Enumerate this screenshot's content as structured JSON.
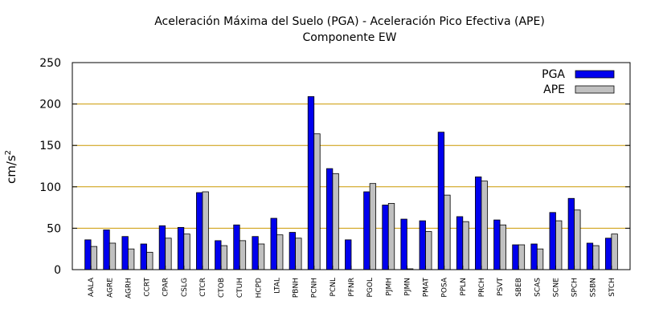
{
  "chart_data": {
    "type": "bar",
    "title": "Aceleración Máxima del Suelo (PGA) -  Aceleración Pico Efectiva (APE)",
    "subtitle": "Componente EW",
    "ylabel": "cm/s",
    "ylabel_sup": "2",
    "ylim": [
      0,
      250
    ],
    "yticks": [
      0,
      50,
      100,
      150,
      200,
      250
    ],
    "grid": "horizontal",
    "legend_position": "top-right",
    "categories": [
      "AALA",
      "AGRE",
      "AGRH",
      "CCRT",
      "CPAR",
      "CSLG",
      "CTCR",
      "CTOB",
      "CTUH",
      "HCPD",
      "LTAL",
      "PBNH",
      "PCNH",
      "PCNL",
      "PFNR",
      "PGOL",
      "PJMH",
      "PJMN",
      "PMAT",
      "POSA",
      "PPLN",
      "PRCH",
      "PSVT",
      "SBEB",
      "SCAS",
      "SCNE",
      "SPCH",
      "SSBN",
      "STCH"
    ],
    "series": [
      {
        "name": "PGA",
        "color": "#0000ee",
        "values": [
          36,
          48,
          40,
          31,
          53,
          51,
          93,
          35,
          54,
          40,
          62,
          45,
          209,
          122,
          36,
          94,
          78,
          61,
          59,
          166,
          64,
          112,
          60,
          30,
          31,
          69,
          86,
          32,
          38
        ]
      },
      {
        "name": "APE",
        "color": "#c0c0c0",
        "values": [
          28,
          32,
          25,
          21,
          38,
          43,
          94,
          29,
          35,
          31,
          42,
          38,
          164,
          116,
          0,
          104,
          80,
          1,
          46,
          90,
          58,
          107,
          54,
          30,
          25,
          59,
          72,
          29,
          43
        ]
      }
    ],
    "colors": {
      "gridline": "#cc9900",
      "axis": "#000000"
    }
  }
}
